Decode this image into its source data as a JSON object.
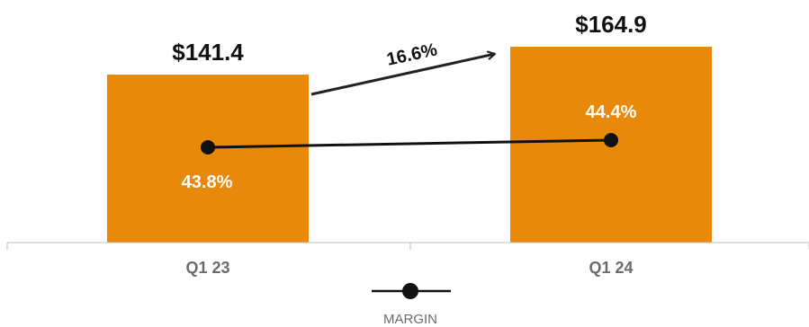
{
  "chart_data": {
    "type": "bar",
    "categories": [
      "Q1 23",
      "Q1 24"
    ],
    "series": [
      {
        "values": [
          141.4,
          164.9
        ],
        "value_labels": [
          "$141.4",
          "$164.9"
        ],
        "kind": "bar",
        "color": "#E8890B"
      },
      {
        "name": "MARGIN",
        "values": [
          43.8,
          44.4
        ],
        "value_labels": [
          "43.8%",
          "44.4%"
        ],
        "kind": "line",
        "color": "#111111"
      }
    ],
    "annotation": {
      "text": "16.6%",
      "from": "Q1 23",
      "to": "Q1 24"
    },
    "legend": {
      "label": "MARGIN",
      "position": "bottom"
    },
    "grid": false
  }
}
